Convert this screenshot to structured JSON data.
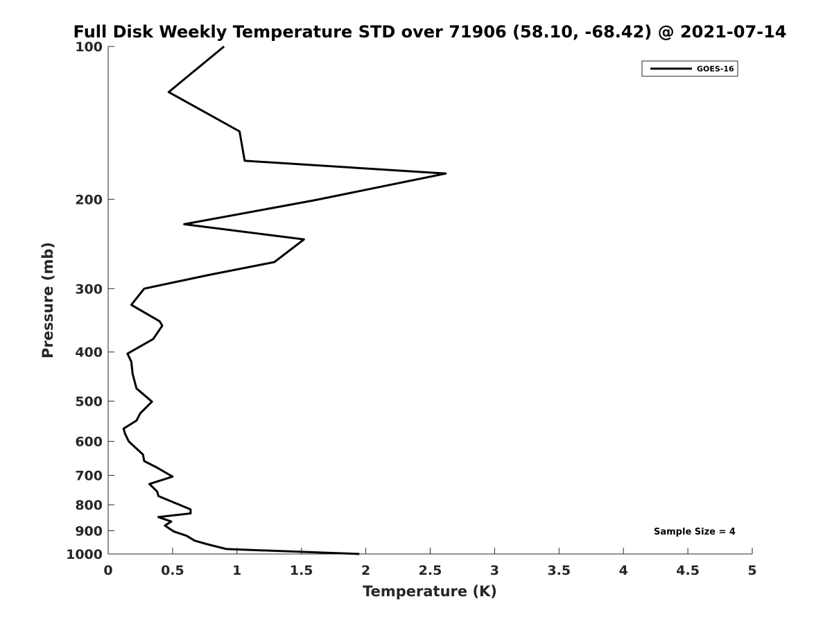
{
  "chart_data": {
    "type": "line",
    "title": "Full Disk Weekly Temperature STD over 71906 (58.10, -68.42) @ 2021-07-14",
    "xlabel": "Temperature (K)",
    "ylabel": "Pressure (mb)",
    "xlim": [
      0,
      5
    ],
    "ylim": [
      100,
      1000
    ],
    "y_scale": "log",
    "y_reversed": true,
    "xticks": [
      0,
      0.5,
      1,
      1.5,
      2,
      2.5,
      3,
      3.5,
      4,
      4.5,
      5
    ],
    "xtick_labels": [
      "0",
      "0.5",
      "1",
      "1.5",
      "2",
      "2.5",
      "3",
      "3.5",
      "4",
      "4.5",
      "5"
    ],
    "yticks": [
      100,
      200,
      300,
      400,
      500,
      600,
      700,
      800,
      900,
      1000
    ],
    "ytick_labels": [
      "100",
      "200",
      "300",
      "400",
      "500",
      "600",
      "700",
      "800",
      "900",
      "1000"
    ],
    "grid": false,
    "legend": "top-right",
    "annotation": "Sample Size = 4",
    "series": [
      {
        "name": "GOES-16",
        "color": "#000000",
        "x": [
          0.9,
          0.47,
          1.02,
          1.06,
          2.62,
          1.6,
          0.59,
          1.52,
          1.29,
          0.78,
          0.28,
          0.18,
          0.4,
          0.42,
          0.35,
          0.15,
          0.18,
          0.19,
          0.22,
          0.34,
          0.25,
          0.22,
          0.12,
          0.13,
          0.16,
          0.27,
          0.28,
          0.38,
          0.5,
          0.32,
          0.38,
          0.39,
          0.64,
          0.64,
          0.39,
          0.49,
          0.44,
          0.51,
          0.61,
          0.67,
          0.77,
          0.92,
          1.95
        ],
        "y": [
          100,
          123,
          147,
          168,
          178,
          201,
          224,
          240,
          266,
          282,
          300,
          323,
          348,
          355,
          377,
          403,
          418,
          442,
          472,
          501,
          528,
          546,
          566,
          579,
          600,
          637,
          656,
          676,
          704,
          728,
          753,
          769,
          817,
          832,
          846,
          863,
          879,
          903,
          921,
          941,
          957,
          978,
          1000
        ]
      }
    ]
  }
}
